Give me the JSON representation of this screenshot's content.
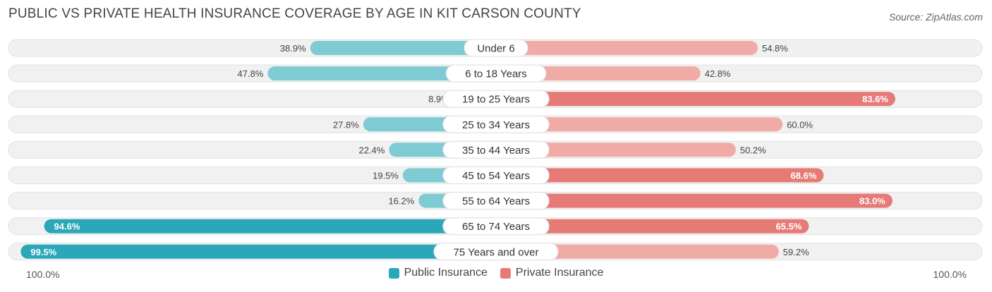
{
  "header": {
    "title": "PUBLIC VS PRIVATE HEALTH INSURANCE COVERAGE BY AGE IN KIT CARSON COUNTY",
    "source": "Source: ZipAtlas.com"
  },
  "axis": {
    "left_label": "100.0%",
    "right_label": "100.0%"
  },
  "legend": {
    "public_label": "Public Insurance",
    "private_label": "Private Insurance"
  },
  "colors": {
    "public_dark": "#2aa7b8",
    "public_light": "#7ecbd4",
    "private_dark": "#e57a76",
    "private_light": "#f0aba7",
    "track": "#f1f1f1"
  },
  "chart_data": {
    "type": "bar",
    "orientation": "horizontal-diverging",
    "title": "PUBLIC VS PRIVATE HEALTH INSURANCE COVERAGE BY AGE IN KIT CARSON COUNTY",
    "categories": [
      "Under 6",
      "6 to 18 Years",
      "19 to 25 Years",
      "25 to 34 Years",
      "35 to 44 Years",
      "45 to 54 Years",
      "55 to 64 Years",
      "65 to 74 Years",
      "75 Years and over"
    ],
    "series": [
      {
        "name": "Public Insurance",
        "values": [
          38.9,
          47.8,
          8.9,
          27.8,
          22.4,
          19.5,
          16.2,
          94.6,
          99.5
        ],
        "labels": [
          "38.9%",
          "47.8%",
          "8.9%",
          "27.8%",
          "22.4%",
          "19.5%",
          "16.2%",
          "94.6%",
          "99.5%"
        ]
      },
      {
        "name": "Private Insurance",
        "values": [
          54.8,
          42.8,
          83.6,
          60.0,
          50.2,
          68.6,
          83.0,
          65.5,
          59.2
        ],
        "labels": [
          "54.8%",
          "42.8%",
          "83.6%",
          "60.0%",
          "50.2%",
          "68.6%",
          "83.0%",
          "65.5%",
          "59.2%"
        ]
      }
    ],
    "xlim": [
      0,
      100
    ],
    "legend_position": "bottom-center"
  }
}
